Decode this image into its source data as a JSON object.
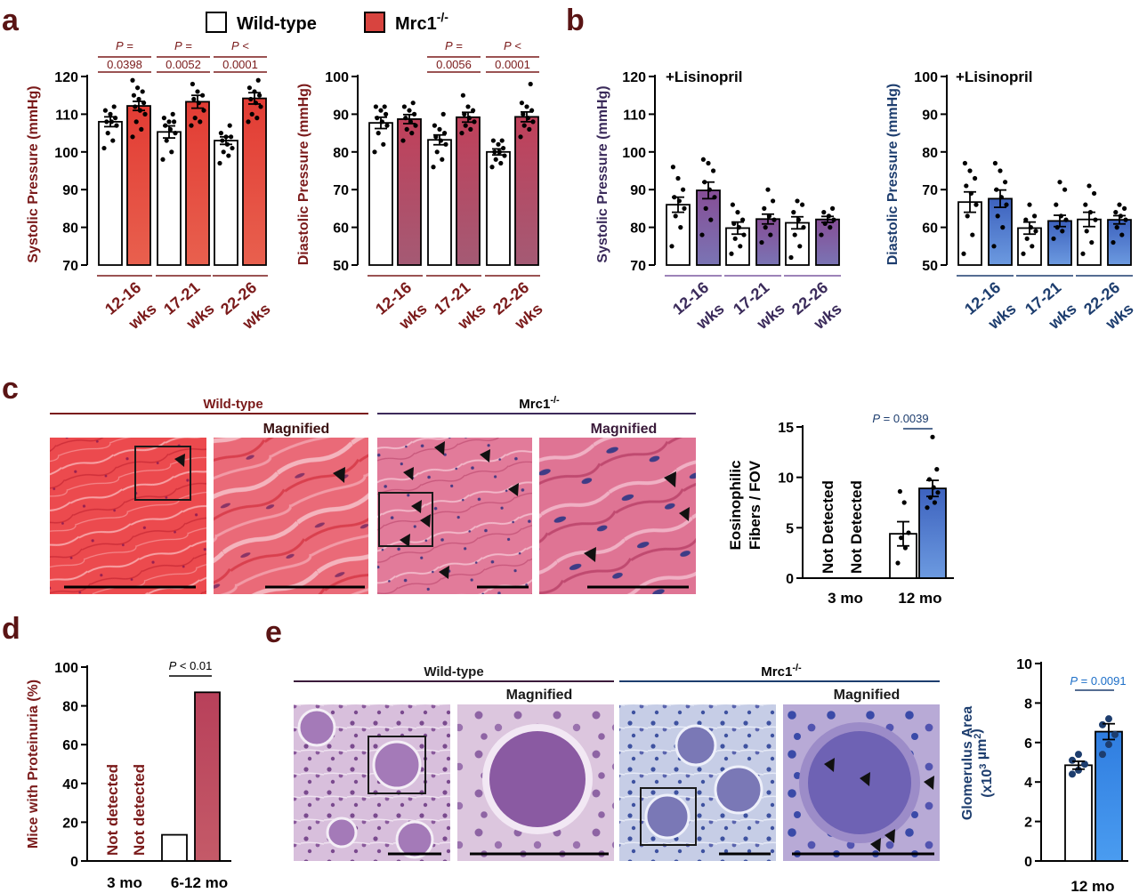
{
  "figure": {
    "panel_labels": [
      "a",
      "b",
      "c",
      "d",
      "e"
    ],
    "legend": {
      "wild_type": "Wild-type",
      "mrc1_base": "Mrc1",
      "mrc1_sup": "-/-"
    },
    "colors": {
      "red_dark": "#7a1a1a",
      "red_bar": "#e2453f",
      "red_bar_light": "#e65a4b",
      "mauve": "#b45a70",
      "purple": "#7c5aa0",
      "purple_mid": "#8a78b4",
      "navy": "#1d3d6e",
      "blue_bar": "#5b86d6",
      "blue_bright": "#3f8ce8",
      "wt_fill": "#ffffff"
    }
  },
  "panel_c": {
    "group_labels": {
      "wild_type": "Wild-type",
      "mrc1_base": "Mrc1",
      "mrc1_sup": "-/-"
    },
    "magnified": "Magnified"
  },
  "panel_e": {
    "group_labels": {
      "wild_type": "Wild-type",
      "mrc1_base": "Mrc1",
      "mrc1_sup": "-/-"
    },
    "magnified": "Magnified"
  },
  "chart_data": [
    {
      "id": "a_systolic",
      "type": "bar",
      "ylabel": "Systolic Pressure (mmHg)",
      "ylim": [
        70,
        120
      ],
      "yticks": [
        70,
        80,
        90,
        100,
        110,
        120
      ],
      "categories": [
        [
          "12-16",
          "wks"
        ],
        [
          "17-21",
          "wks"
        ],
        [
          "22-26",
          "wks"
        ]
      ],
      "series": [
        {
          "name": "Wild-type",
          "values": [
            108,
            105.3,
            103
          ],
          "sem": [
            1.3,
            1.6,
            1.0
          ],
          "points": [
            [
              101,
              103,
              105,
              107,
              108,
              108,
              109,
              110,
              111,
              112
            ],
            [
              98,
              100,
              103,
              105,
              106,
              107,
              108,
              108,
              109,
              110
            ],
            [
              97,
              99,
              100,
              101,
              102,
              103,
              104,
              104,
              105,
              107
            ]
          ]
        },
        {
          "name": "Mrc1-/-",
          "values": [
            112.2,
            113.3,
            114.2
          ],
          "sem": [
            1.2,
            1.7,
            1.5
          ],
          "points": [
            [
              104,
              106,
              108,
              110,
              111,
              112,
              113,
              114,
              115,
              116,
              117,
              119
            ],
            [
              107,
              108,
              109,
              111,
              113,
              114,
              115,
              116,
              118
            ],
            [
              108,
              109,
              110,
              112,
              113,
              114,
              115,
              116,
              117,
              119
            ]
          ]
        }
      ],
      "pvalues": [
        [
          "P =",
          "0.0398"
        ],
        [
          "P =",
          "0.0052"
        ],
        [
          "P <",
          "0.0001"
        ]
      ]
    },
    {
      "id": "a_diastolic",
      "type": "bar",
      "ylabel": "Diastolic Pressure (mmHg)",
      "ylim": [
        50,
        100
      ],
      "yticks": [
        50,
        60,
        70,
        80,
        90,
        100
      ],
      "categories": [
        [
          "12-16",
          "wks"
        ],
        [
          "17-21",
          "wks"
        ],
        [
          "22-26",
          "wks"
        ]
      ],
      "series": [
        {
          "name": "Wild-type",
          "values": [
            87.7,
            83.2,
            80
          ],
          "sem": [
            1.5,
            1.3,
            0.8
          ],
          "points": [
            [
              80,
              82,
              85,
              87,
              88,
              89,
              90,
              91,
              92,
              92
            ],
            [
              76,
              78,
              80,
              82,
              83,
              84,
              85,
              86,
              87,
              90
            ],
            [
              76,
              77,
              78,
              79,
              80,
              80,
              81,
              82,
              83,
              83
            ]
          ]
        },
        {
          "name": "Mrc1-/-",
          "values": [
            88.7,
            89.2,
            89.3
          ],
          "sem": [
            1.2,
            1.3,
            1.3
          ],
          "points": [
            [
              83,
              85,
              86,
              87,
              88,
              89,
              90,
              91,
              92,
              93
            ],
            [
              85,
              86,
              87,
              88,
              89,
              90,
              91,
              92,
              95
            ],
            [
              84,
              86,
              87,
              88,
              89,
              90,
              91,
              92,
              93,
              98
            ]
          ]
        }
      ],
      "pvalues": [
        null,
        [
          "P =",
          "0.0056"
        ],
        [
          "P <",
          "0.0001"
        ]
      ]
    },
    {
      "id": "b_systolic",
      "type": "bar",
      "ylabel": "Systolic Pressure (mmHg)",
      "ylim": [
        70,
        120
      ],
      "yticks": [
        70,
        80,
        90,
        100,
        110,
        120
      ],
      "annotation": "+Lisinopril",
      "categories": [
        [
          "12-16",
          "wks"
        ],
        [
          "17-21",
          "wks"
        ],
        [
          "22-26",
          "wks"
        ]
      ],
      "series": [
        {
          "name": "Wild-type",
          "values": [
            86,
            79.8,
            81.2
          ],
          "sem": [
            2.0,
            1.6,
            1.6
          ],
          "points": [
            [
              75,
              80,
              83,
              85,
              87,
              88,
              90,
              93,
              96
            ],
            [
              73,
              75,
              77,
              78,
              80,
              81,
              82,
              84,
              86
            ],
            [
              72,
              75,
              78,
              80,
              82,
              84,
              86,
              87
            ]
          ]
        },
        {
          "name": "Mrc1-/-",
          "values": [
            89.8,
            82.2,
            82.1
          ],
          "sem": [
            2.2,
            1.3,
            0.8
          ],
          "points": [
            [
              78,
              82,
              85,
              88,
              90,
              92,
              95,
              97,
              98
            ],
            [
              76,
              78,
              80,
              82,
              83,
              85,
              87,
              90
            ],
            [
              78,
              80,
              81,
              82,
              83,
              84,
              85
            ]
          ]
        }
      ]
    },
    {
      "id": "b_diastolic",
      "type": "bar",
      "ylabel": "Diastolic Pressure (mmHg)",
      "ylim": [
        50,
        100
      ],
      "yticks": [
        50,
        60,
        70,
        80,
        90,
        100
      ],
      "annotation": "+Lisinopril",
      "categories": [
        [
          "12-16",
          "wks"
        ],
        [
          "17-21",
          "wks"
        ],
        [
          "22-26",
          "wks"
        ]
      ],
      "series": [
        {
          "name": "Wild-type",
          "values": [
            66.7,
            59.8,
            62.1
          ],
          "sem": [
            2.7,
            1.6,
            1.9
          ],
          "points": [
            [
              53,
              58,
              63,
              66,
              69,
              71,
              73,
              75,
              77
            ],
            [
              53,
              55,
              57,
              59,
              60,
              62,
              63,
              66
            ],
            [
              53,
              56,
              59,
              62,
              64,
              66,
              69,
              71
            ]
          ]
        },
        {
          "name": "Mrc1-/-",
          "values": [
            67.6,
            61.7,
            62
          ],
          "sem": [
            2.3,
            1.5,
            1.1
          ],
          "points": [
            [
              55,
              60,
              63,
              66,
              68,
              70,
              72,
              75,
              77
            ],
            [
              57,
              59,
              60,
              62,
              63,
              66,
              70,
              72
            ],
            [
              56,
              58,
              60,
              62,
              63,
              64,
              65,
              66
            ]
          ]
        }
      ]
    },
    {
      "id": "c_eosinophilic",
      "type": "bar",
      "ylabel": [
        "Eosinophilic",
        "Fibers / FOV"
      ],
      "ylim": [
        0,
        15
      ],
      "yticks": [
        0,
        5,
        10,
        15
      ],
      "categories": [
        "3 mo",
        "12 mo"
      ],
      "not_detected": [
        "Not Detected",
        "Not Detected"
      ],
      "series": [
        {
          "name": "Wild-type",
          "values": [
            null,
            4.4
          ],
          "sem": [
            null,
            1.2
          ],
          "points": [
            [],
            [
              1.5,
              3,
              4,
              4.5,
              7.5,
              8.6
            ]
          ]
        },
        {
          "name": "Mrc1-/-",
          "values": [
            null,
            8.9
          ],
          "sem": [
            null,
            0.8
          ],
          "points": [
            [],
            [
              7,
              7.5,
              8,
              8.5,
              9,
              9.8,
              10.8,
              14
            ]
          ]
        }
      ],
      "pvalue": [
        "P",
        " = 0.0039"
      ]
    },
    {
      "id": "d_proteinuria",
      "type": "bar",
      "ylabel": "Mice with Proteinuria (%)",
      "ylim": [
        0,
        100
      ],
      "yticks": [
        0,
        20,
        40,
        60,
        80,
        100
      ],
      "categories": [
        "3 mo",
        "6-12 mo"
      ],
      "not_detected": [
        "Not detected",
        "Not detected"
      ],
      "series": [
        {
          "name": "Wild-type",
          "values": [
            null,
            13.5
          ]
        },
        {
          "name": "Mrc1-/-",
          "values": [
            null,
            87
          ]
        }
      ],
      "pvalue": [
        "P",
        " < 0.01"
      ]
    },
    {
      "id": "e_glomerulus",
      "type": "bar",
      "ylabel": [
        "Glomerulus Area",
        "(x10",
        "3",
        " µm",
        "2",
        ")"
      ],
      "ylim": [
        0,
        10
      ],
      "yticks": [
        0,
        2,
        4,
        6,
        8,
        10
      ],
      "categories": [
        "12 mo"
      ],
      "series": [
        {
          "name": "Wild-type",
          "values": [
            4.85
          ],
          "sem": [
            0.2
          ],
          "points": [
            [
              4.4,
              4.6,
              4.9,
              5.1,
              5.4
            ]
          ]
        },
        {
          "name": "Mrc1-/-",
          "values": [
            6.55
          ],
          "sem": [
            0.4
          ],
          "points": [
            [
              5.4,
              5.9,
              6.4,
              6.9,
              7.2
            ]
          ]
        }
      ],
      "pvalue": [
        "P",
        " = 0.0091"
      ]
    }
  ]
}
